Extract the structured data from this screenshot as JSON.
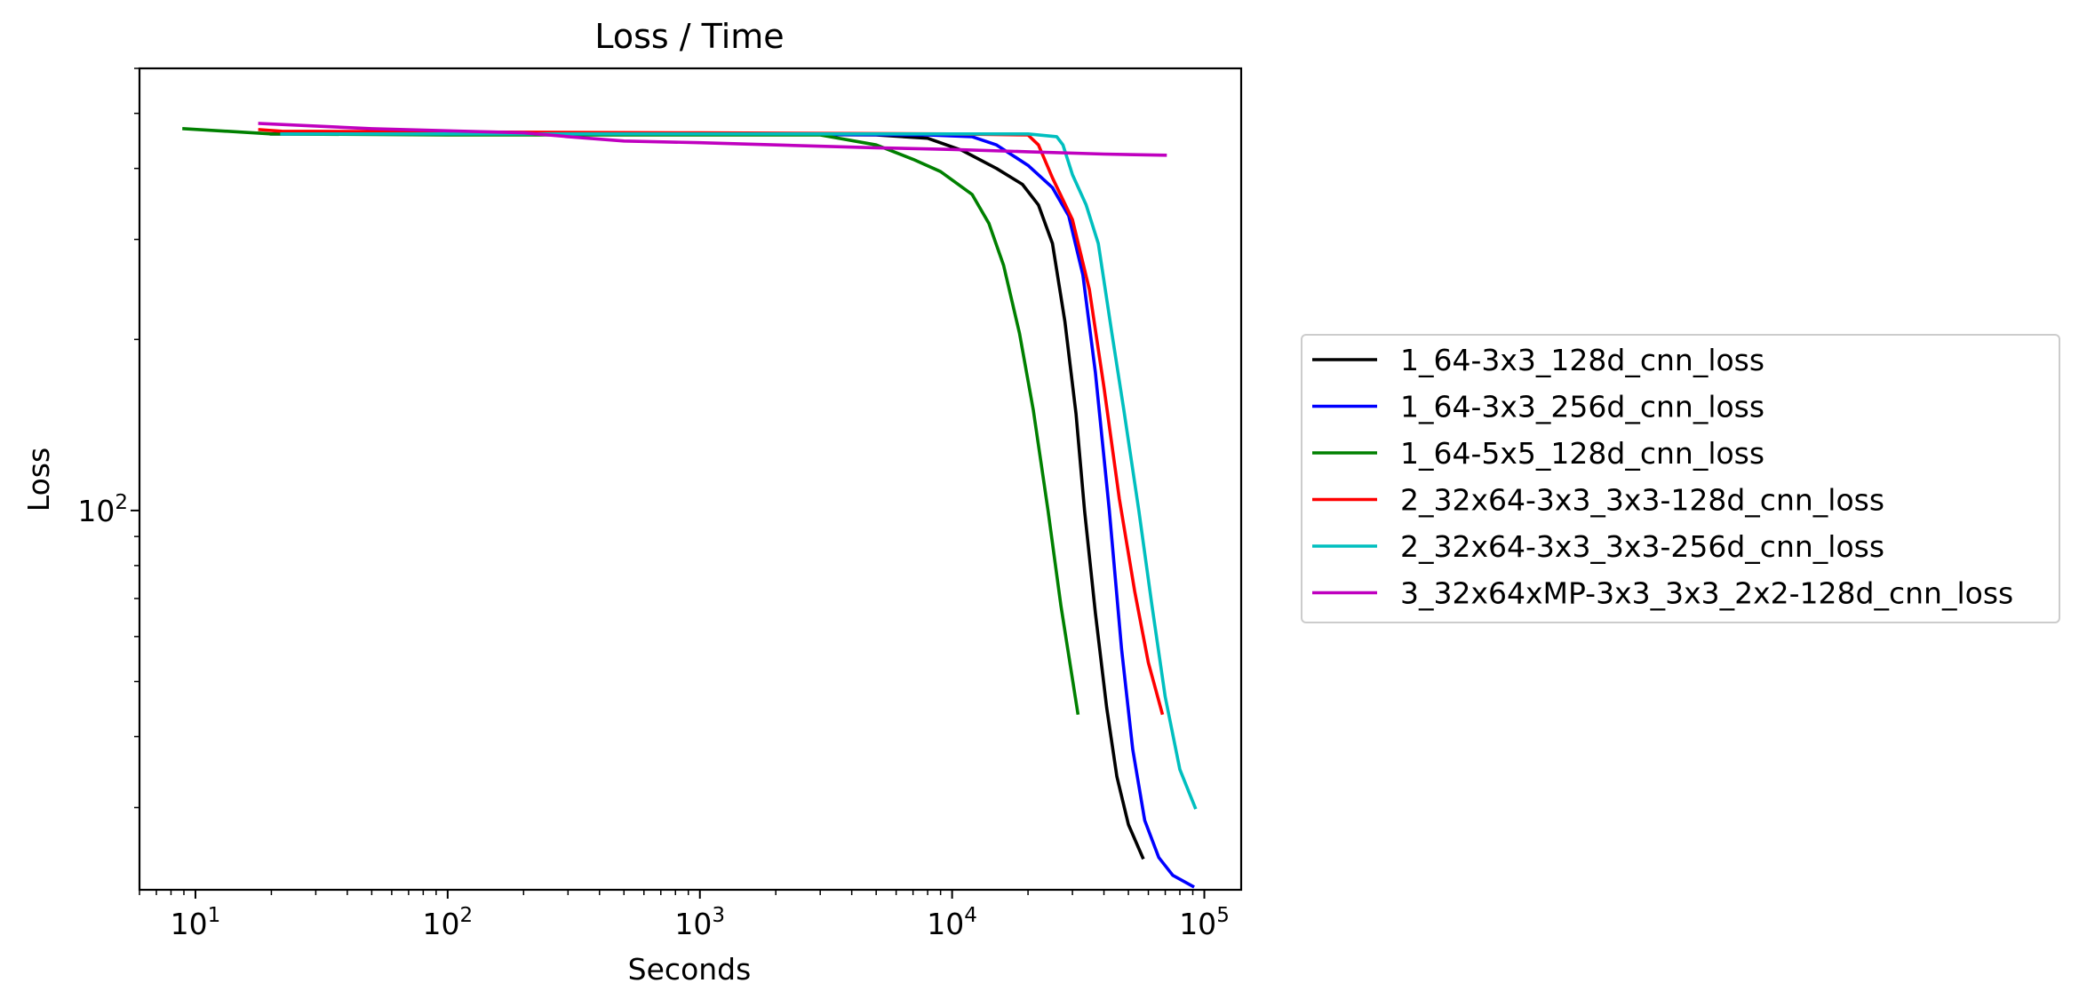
{
  "chart_data": {
    "type": "line",
    "title": "Loss / Time",
    "xlabel": "Seconds",
    "ylabel": "Loss",
    "xscale": "log",
    "yscale": "log",
    "xlim": [
      6,
      140000
    ],
    "ylim": [
      21.5,
      600
    ],
    "xticks": [
      {
        "value": 10,
        "base": "10",
        "exp": "1"
      },
      {
        "value": 100,
        "base": "10",
        "exp": "2"
      },
      {
        "value": 1000,
        "base": "10",
        "exp": "3"
      },
      {
        "value": 10000,
        "base": "10",
        "exp": "4"
      },
      {
        "value": 100000,
        "base": "10",
        "exp": "5"
      }
    ],
    "yticks": [
      {
        "value": 100,
        "base": "10",
        "exp": "2"
      }
    ],
    "grid": false,
    "legend_placement": "outside-right",
    "series": [
      {
        "name": "1_64-3x3_128d_cnn_loss",
        "color": "#000000",
        "points": [
          [
            20,
            460
          ],
          [
            1000,
            460
          ],
          [
            5000,
            458
          ],
          [
            8000,
            452
          ],
          [
            11000,
            430
          ],
          [
            15000,
            400
          ],
          [
            19000,
            375
          ],
          [
            22000,
            345
          ],
          [
            25000,
            295
          ],
          [
            28000,
            215
          ],
          [
            31000,
            148
          ],
          [
            33500,
            100
          ],
          [
            37000,
            66
          ],
          [
            41000,
            45
          ],
          [
            45000,
            34
          ],
          [
            50000,
            28
          ],
          [
            57000,
            24.5
          ]
        ]
      },
      {
        "name": "1_64-3x3_256d_cnn_loss",
        "color": "#0000ff",
        "points": [
          [
            20,
            460
          ],
          [
            1000,
            460
          ],
          [
            8000,
            458
          ],
          [
            12000,
            455
          ],
          [
            15000,
            440
          ],
          [
            20000,
            405
          ],
          [
            25000,
            370
          ],
          [
            29000,
            330
          ],
          [
            33000,
            260
          ],
          [
            37000,
            175
          ],
          [
            42000,
            100
          ],
          [
            47000,
            57
          ],
          [
            52000,
            38
          ],
          [
            58000,
            28.5
          ],
          [
            66000,
            24.5
          ],
          [
            75000,
            22.8
          ],
          [
            90000,
            21.8
          ]
        ]
      },
      {
        "name": "1_64-5x5_128d_cnn_loss",
        "color": "#008000",
        "points": [
          [
            9,
            470
          ],
          [
            20,
            460
          ],
          [
            100,
            458
          ],
          [
            1000,
            458
          ],
          [
            3000,
            458
          ],
          [
            5000,
            440
          ],
          [
            7000,
            415
          ],
          [
            9000,
            395
          ],
          [
            12000,
            360
          ],
          [
            14000,
            320
          ],
          [
            16000,
            270
          ],
          [
            18500,
            205
          ],
          [
            21000,
            150
          ],
          [
            24000,
            100
          ],
          [
            27000,
            68
          ],
          [
            31500,
            44
          ]
        ]
      },
      {
        "name": "2_32x64-3x3_3x3-128d_cnn_loss",
        "color": "#ff0000",
        "points": [
          [
            18,
            468
          ],
          [
            22,
            465
          ],
          [
            1000,
            462
          ],
          [
            10000,
            460
          ],
          [
            20000,
            458
          ],
          [
            22000,
            440
          ],
          [
            25000,
            385
          ],
          [
            30000,
            325
          ],
          [
            35000,
            245
          ],
          [
            40000,
            165
          ],
          [
            46000,
            105
          ],
          [
            53000,
            72
          ],
          [
            60000,
            54
          ],
          [
            68000,
            44
          ]
        ]
      },
      {
        "name": "2_32x64-3x3_3x3-256d_cnn_loss",
        "color": "#00bfbf",
        "points": [
          [
            22,
            460
          ],
          [
            200,
            460
          ],
          [
            1000,
            460
          ],
          [
            10000,
            460
          ],
          [
            20000,
            460
          ],
          [
            26000,
            455
          ],
          [
            27500,
            440
          ],
          [
            30000,
            390
          ],
          [
            34000,
            345
          ],
          [
            38000,
            295
          ],
          [
            43000,
            205
          ],
          [
            48000,
            150
          ],
          [
            55000,
            100
          ],
          [
            62000,
            68
          ],
          [
            70000,
            47
          ],
          [
            80000,
            35
          ],
          [
            92000,
            30
          ]
        ]
      },
      {
        "name": "3_32x64xMP-3x3_3x3_2x2-128d_cnn_loss",
        "color": "#bf00bf",
        "points": [
          [
            18,
            480
          ],
          [
            50,
            470
          ],
          [
            200,
            462
          ],
          [
            300,
            455
          ],
          [
            500,
            447
          ],
          [
            1000,
            444
          ],
          [
            2000,
            440
          ],
          [
            5000,
            435
          ],
          [
            10000,
            432
          ],
          [
            20000,
            428
          ],
          [
            40000,
            424
          ],
          [
            70000,
            422
          ]
        ]
      }
    ]
  }
}
